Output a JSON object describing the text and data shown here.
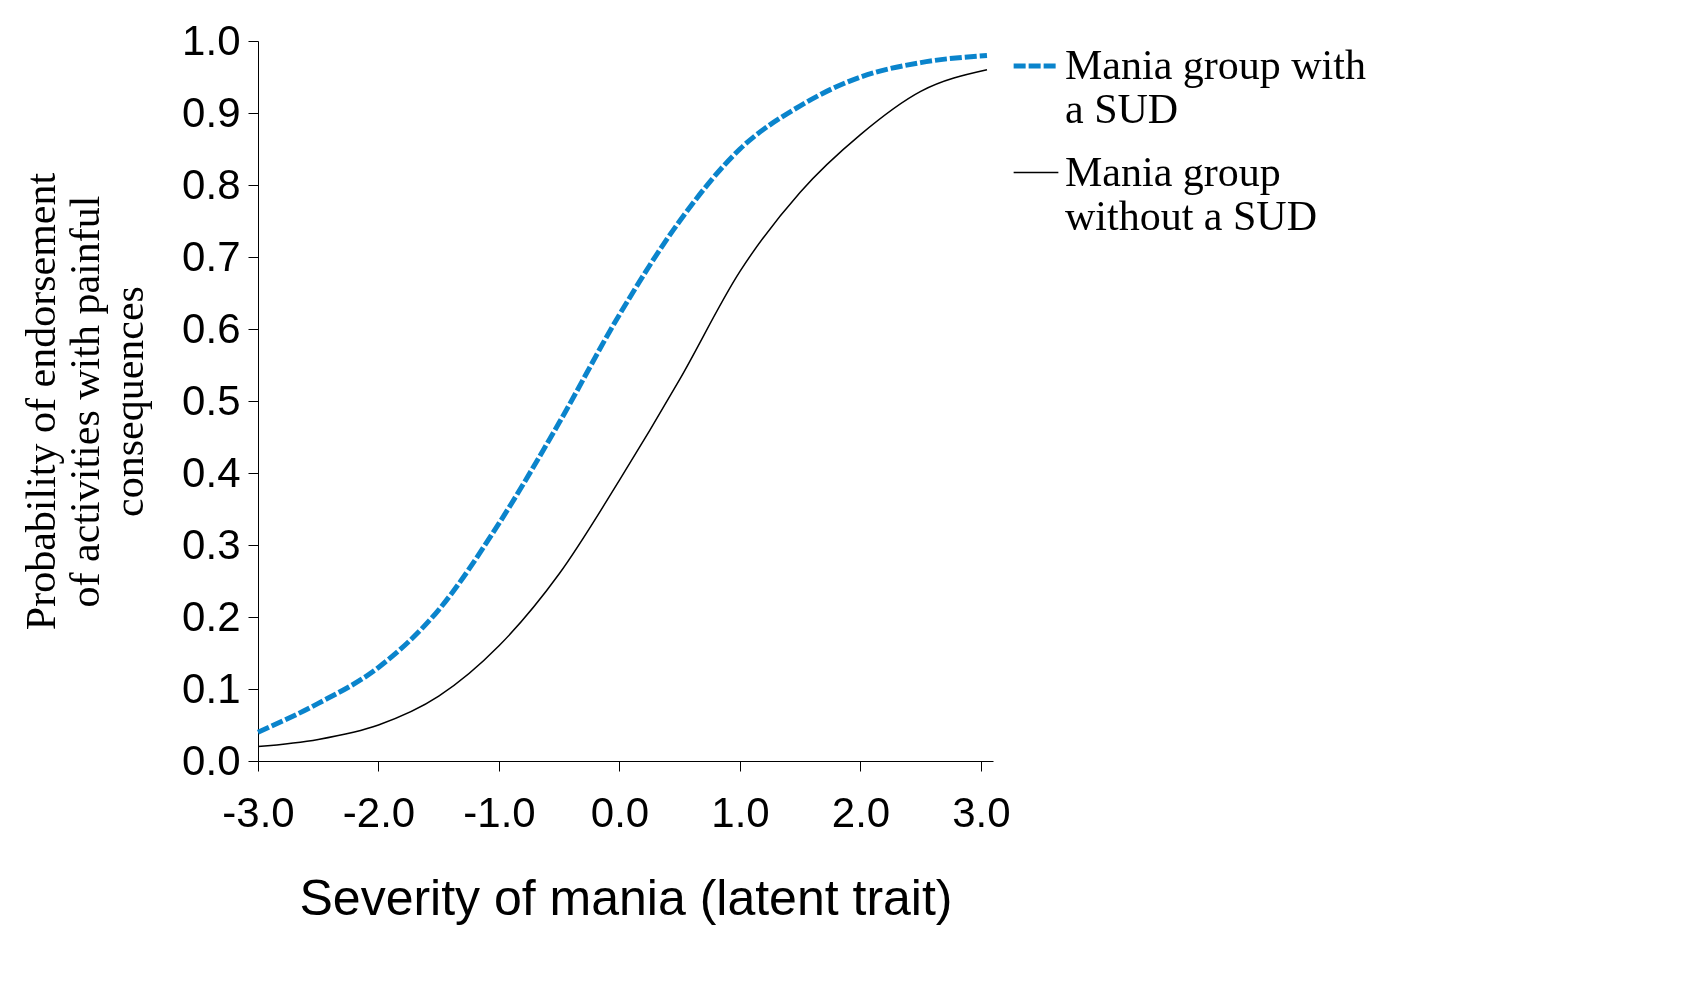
{
  "chart_data": {
    "type": "line",
    "xlabel": "Severity of mania (latent trait)",
    "ylabel": "Probability of endorsement of activities with painful consequences",
    "x": [
      -3,
      -2.5,
      -2,
      -1.5,
      -1,
      -0.5,
      0,
      0.5,
      1,
      1.5,
      2,
      2.5,
      3.05
    ],
    "series": [
      {
        "name": "Mania group with a SUD",
        "color": "#0a84cc",
        "line_style": "dashed",
        "values": [
          0.04,
          0.08,
          0.13,
          0.21,
          0.33,
          0.47,
          0.62,
          0.75,
          0.85,
          0.91,
          0.95,
          0.97,
          0.98
        ]
      },
      {
        "name": "Mania group without a SUD",
        "color": "#000000",
        "line_style": "solid",
        "values": [
          0.02,
          0.03,
          0.05,
          0.09,
          0.16,
          0.26,
          0.39,
          0.53,
          0.68,
          0.79,
          0.87,
          0.93,
          0.96
        ]
      }
    ],
    "xlim": [
      -3,
      3.1
    ],
    "xticks": [
      {
        "value": -3,
        "label": "-3.0"
      },
      {
        "value": -2,
        "label": "-2.0"
      },
      {
        "value": -1,
        "label": "-1.0"
      },
      {
        "value": 0,
        "label": "0.0"
      },
      {
        "value": 1,
        "label": "1.0"
      },
      {
        "value": 2,
        "label": "2.0"
      },
      {
        "value": 3,
        "label": "3.0"
      }
    ],
    "ylim": [
      0,
      1
    ],
    "yticks": [
      {
        "value": 0,
        "label": "0.0"
      },
      0.1,
      0.2,
      0.3,
      0.4,
      0.5,
      0.6,
      0.7,
      0.8,
      0.9,
      {
        "value": 1,
        "label": "1.0"
      }
    ],
    "grid": false,
    "legend": "right",
    "marker": "none"
  }
}
